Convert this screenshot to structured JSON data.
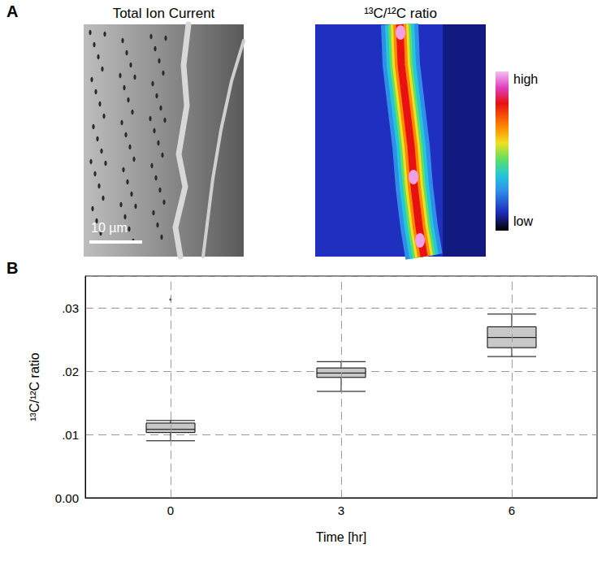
{
  "panel_a": {
    "label": "A",
    "images": [
      {
        "title": "Total Ion Current",
        "scale_bar": "10 µm"
      },
      {
        "title": "¹³C/¹²C ratio",
        "colorbar": {
          "high": "high",
          "low": "low"
        }
      }
    ]
  },
  "chart_data": {
    "type": "boxplot",
    "title": "B",
    "x_label": "Time [hr]",
    "y_label": "¹³C/¹²C ratio",
    "categories": [
      "0",
      "3",
      "6"
    ],
    "values": [
      [
        0.009,
        0.0103,
        0.0108,
        0.0118,
        0.0122
      ],
      [
        0.0168,
        0.019,
        0.0197,
        0.0205,
        0.0215
      ],
      [
        0.0223,
        0.0237,
        0.0253,
        0.027,
        0.029
      ]
    ],
    "outliers": [
      [
        0.0313
      ],
      [],
      []
    ],
    "color": "#c8c8c8",
    "ylim": [
      0,
      0.035
    ],
    "yticks": [
      {
        "value": 0,
        "label": "0.00"
      },
      {
        "value": 0.01,
        "label": ".01"
      },
      {
        "value": 0.02,
        "label": ".02"
      },
      {
        "value": 0.03,
        "label": ".03"
      }
    ],
    "grid": true
  }
}
